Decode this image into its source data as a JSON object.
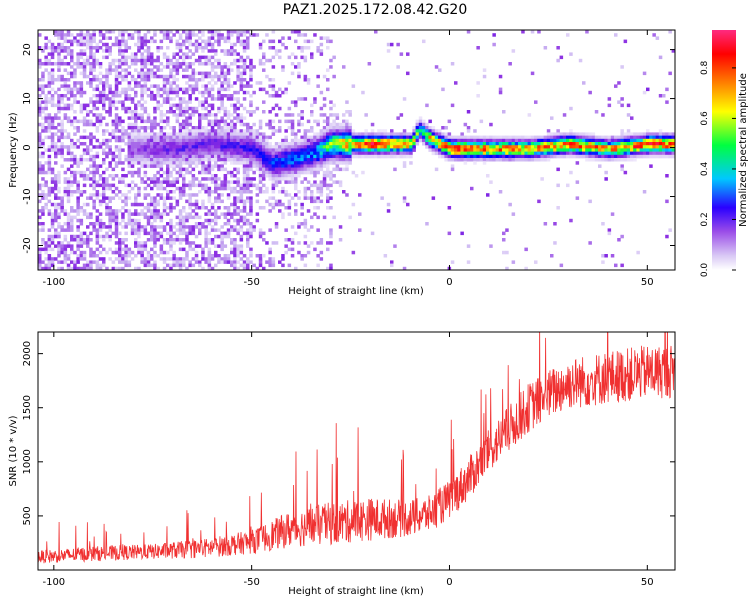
{
  "figure_title": "PAZ1.2025.172.08.42.G20",
  "colors": {
    "snr_line": "#f03030",
    "colormap": [
      "#ffffff",
      "#cdb8f2",
      "#8a2be2",
      "#0000ff",
      "#00d0ff",
      "#00ff40",
      "#ffff00",
      "#ff6000",
      "#ff0000",
      "#ff2a80"
    ]
  },
  "chart_data": [
    {
      "type": "heatmap",
      "xlabel": "Height of straight line (km)",
      "ylabel": "Frequency (Hz)",
      "xlim": [
        -104,
        57
      ],
      "ylim": [
        -25,
        24
      ],
      "xticks": [
        -100,
        -50,
        0,
        50
      ],
      "yticks": [
        -20,
        -10,
        0,
        10,
        20
      ],
      "ridge": {
        "description_points_x": [
          -80,
          -70,
          -60,
          -50,
          -45,
          -40,
          -35,
          -30,
          -25,
          -20,
          -15,
          -10,
          -8,
          -5,
          0,
          10,
          20,
          30,
          40,
          50,
          57
        ],
        "description_points_y": [
          0,
          0,
          1,
          0,
          -3,
          -2,
          -1,
          1,
          1,
          1,
          1,
          1,
          4,
          2,
          0,
          0,
          0,
          1,
          0,
          1,
          1
        ],
        "peak_amplitude": [
          0.2,
          0.25,
          0.25,
          0.3,
          0.35,
          0.4,
          0.4,
          0.6,
          0.75,
          0.85,
          0.8,
          0.7,
          0.55,
          0.7,
          0.85,
          0.8,
          0.75,
          0.8,
          0.75,
          0.85,
          0.8
        ]
      },
      "colorbar": {
        "label": "Normalized spectral amplitude",
        "range": [
          0,
          0.95
        ],
        "ticks": [
          "0.0",
          "0.2",
          "0.4",
          "0.6",
          "0.8"
        ]
      }
    },
    {
      "type": "line",
      "xlabel": "Height of straight line (km)",
      "ylabel": "SNR (10 * v/v)",
      "xlim": [
        -104,
        57
      ],
      "ylim": [
        0,
        2200
      ],
      "xticks": [
        -100,
        -50,
        0,
        50
      ],
      "yticks": [
        500,
        1000,
        1500,
        2000
      ],
      "trend_x": [
        -104,
        -90,
        -75,
        -62,
        -50,
        -40,
        -30,
        -20,
        -10,
        -5,
        0,
        5,
        10,
        15,
        20,
        25,
        30,
        40,
        50,
        57
      ],
      "trend_y": [
        120,
        150,
        170,
        200,
        260,
        380,
        430,
        470,
        480,
        520,
        650,
        850,
        1100,
        1300,
        1500,
        1620,
        1720,
        1780,
        1830,
        1840
      ],
      "noise_amplitude": [
        60,
        70,
        70,
        90,
        110,
        170,
        200,
        200,
        170,
        170,
        180,
        200,
        200,
        220,
        230,
        230,
        240,
        250,
        250,
        250
      ]
    }
  ]
}
